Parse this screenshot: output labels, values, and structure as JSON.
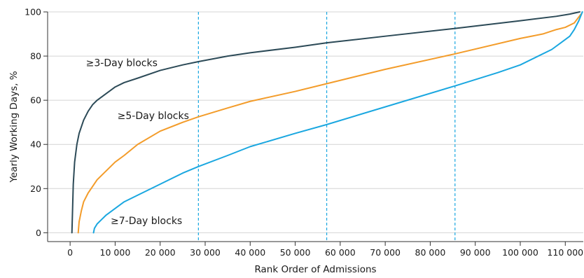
{
  "chart_data": {
    "type": "line",
    "title": "",
    "xlabel": "Rank Order of Admissions",
    "ylabel": "Yearly Working Days, %",
    "xlim": [
      -5000,
      114000
    ],
    "ylim": [
      -4,
      100
    ],
    "xticks": [
      0,
      10000,
      20000,
      30000,
      40000,
      50000,
      60000,
      70000,
      80000,
      90000,
      100000,
      110000
    ],
    "xtick_labels": [
      "0",
      "10 000",
      "20 000",
      "30 000",
      "40 000",
      "50 000",
      "60 000",
      "70 000",
      "80 000",
      "90 000",
      "100 000",
      "110 000"
    ],
    "yticks": [
      0,
      20,
      40,
      60,
      80,
      100
    ],
    "ytick_labels": [
      "0",
      "20",
      "40",
      "60",
      "80",
      "100"
    ],
    "grid": "horizontal",
    "legend": "inline labels",
    "vlines": [
      28500,
      57000,
      85500
    ],
    "series": [
      {
        "name": "≥3-Day blocks",
        "color": "#2c4a57",
        "x": [
          400,
          700,
          1000,
          1500,
          2000,
          3000,
          4000,
          5000,
          6000,
          8000,
          10000,
          12000,
          15000,
          20000,
          25000,
          28500,
          35000,
          40000,
          50000,
          57000,
          70000,
          85500,
          100000,
          108000,
          111000,
          113200
        ],
        "y": [
          0,
          22,
          32,
          40,
          45,
          51,
          55,
          58,
          60,
          63,
          66,
          68,
          70,
          73.5,
          76,
          77.5,
          80,
          81.5,
          84,
          86,
          89,
          92.5,
          96,
          98,
          99,
          100
        ]
      },
      {
        "name": "≥5-Day blocks",
        "color": "#f39c2a",
        "x": [
          1800,
          2000,
          2500,
          3000,
          4000,
          5000,
          6000,
          8000,
          10000,
          12000,
          15000,
          20000,
          25000,
          28500,
          35000,
          40000,
          50000,
          57000,
          70000,
          85500,
          100000,
          105000,
          108000,
          110000,
          112000,
          113500
        ],
        "y": [
          0,
          5,
          10,
          14,
          18,
          21,
          24,
          28,
          32,
          35,
          40,
          46,
          50,
          52.5,
          56.5,
          59.5,
          64,
          67.5,
          74,
          81,
          88,
          90,
          92,
          93,
          95,
          99
        ]
      },
      {
        "name": "≥7-Day blocks",
        "color": "#1aa7e0",
        "x": [
          5200,
          5400,
          6000,
          7000,
          8000,
          10000,
          12000,
          15000,
          20000,
          25000,
          28500,
          35000,
          40000,
          50000,
          57000,
          70000,
          85500,
          95000,
          100000,
          104000,
          107000,
          109000,
          111000,
          112000,
          113000,
          113800
        ],
        "y": [
          0,
          2,
          4,
          6,
          8,
          11,
          14,
          17,
          22,
          27,
          30,
          35,
          39,
          45,
          49,
          57,
          66.5,
          72.5,
          76,
          80,
          83,
          86,
          89,
          92,
          96,
          100
        ]
      }
    ],
    "annotations": [
      {
        "text": "≥3-Day blocks",
        "x": 3500,
        "y": 75.5
      },
      {
        "text": "≥5-Day blocks",
        "x": 10500,
        "y": 51.5
      },
      {
        "text": "≥7-Day blocks",
        "x": 9000,
        "y": 4
      }
    ]
  }
}
